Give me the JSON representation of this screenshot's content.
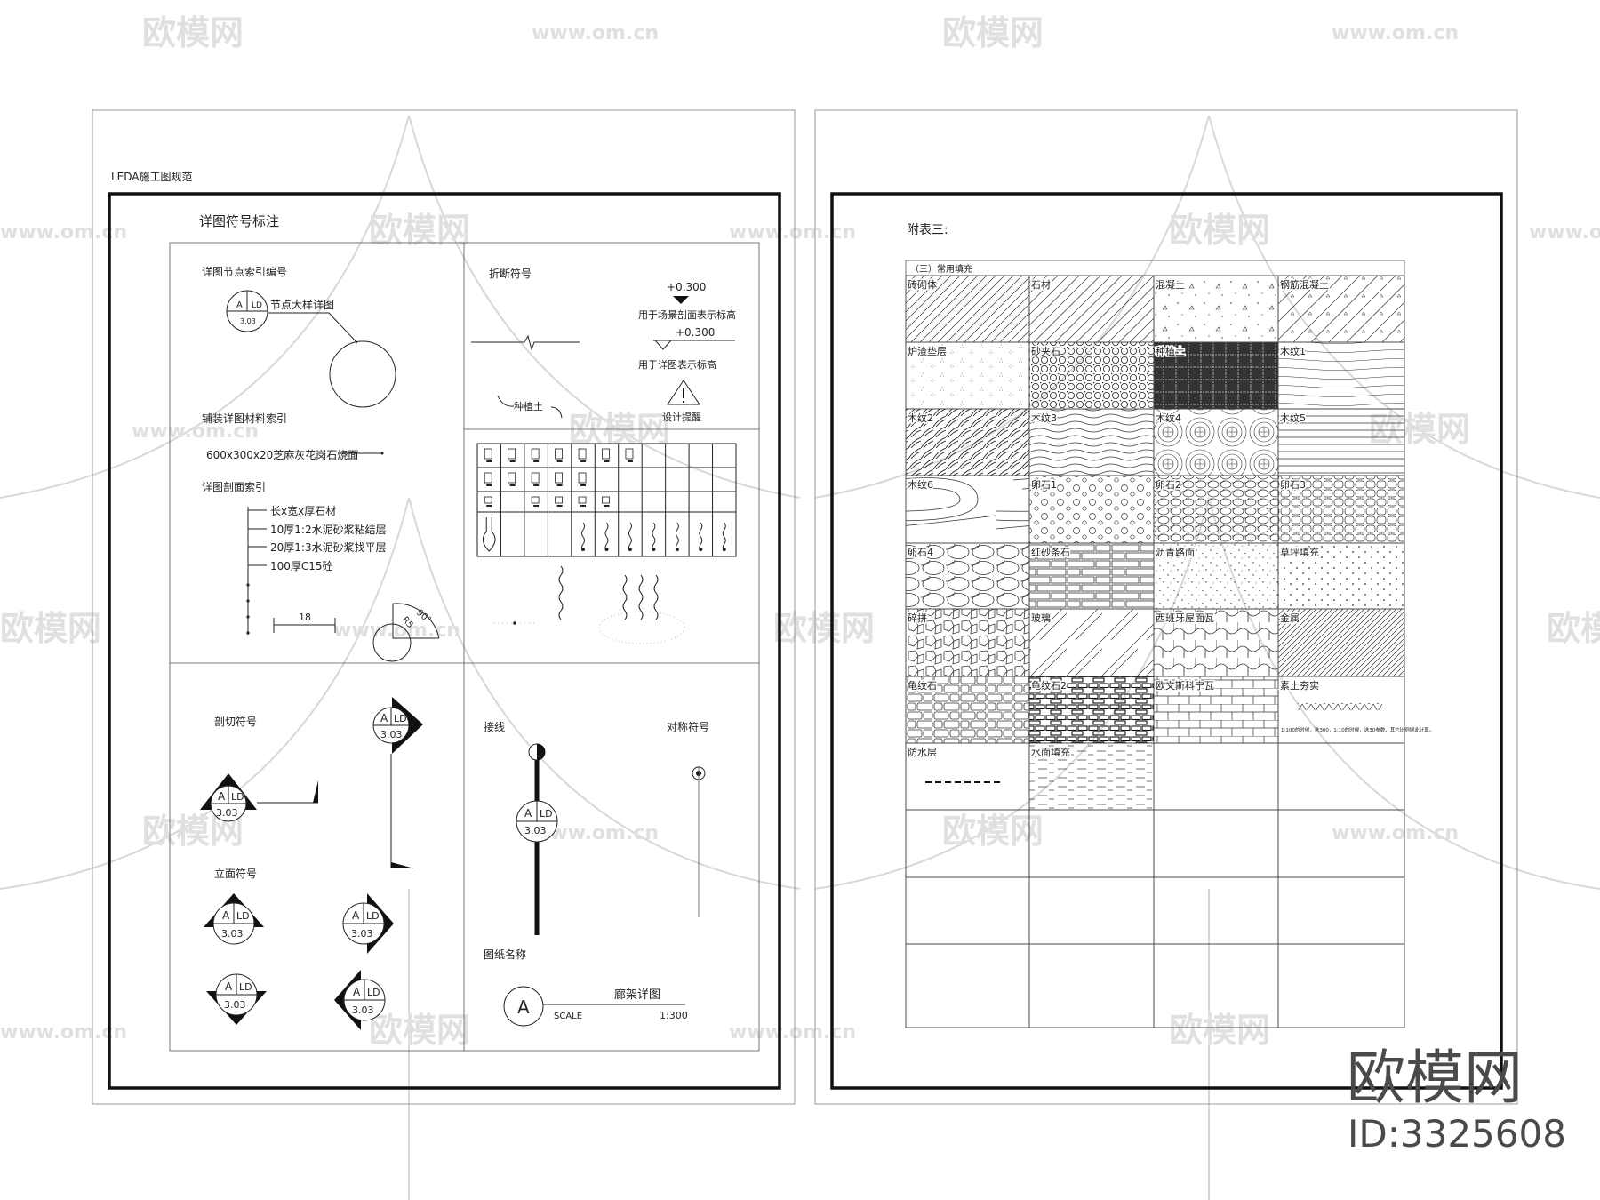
{
  "left_sheet": {
    "header": "LEDA施工图规范",
    "title": "详图符号标注",
    "detail_index": {
      "label": "详图节点索引编号",
      "letter": "A",
      "code": "LD",
      "number": "3.03",
      "callout": "节点大样详图"
    },
    "material_index": {
      "label": "铺装详图材料索引",
      "material": "600x300x20芝麻灰花岗石烧面"
    },
    "section_index": {
      "label": "详图剖面索引",
      "layers": [
        "长x宽x厚石材",
        "10厚1:2水泥砂浆粘结层",
        "20厚1:3水泥砂浆找平层",
        "100厚C15砼"
      ],
      "dimension": "18",
      "angle": "90°",
      "radius": "R5"
    },
    "break_symbol": {
      "label": "折断符号",
      "planting": "种植土"
    },
    "elevation": {
      "value1": "+0.300",
      "desc1": "用于场景剖面表示标高",
      "value2": "+0.300",
      "desc2": "用于详图表示标高",
      "reminder": "设计提醒"
    },
    "section_symbol": {
      "label": "剖切符号",
      "letter": "A",
      "code": "LD",
      "number": "3.03"
    },
    "facade_symbol": {
      "label": "立面符号",
      "letter": "A",
      "code": "LD",
      "number": "3.03"
    },
    "leader_line": {
      "label": "接线",
      "letter": "A",
      "code": "LD",
      "number": "3.03"
    },
    "symmetry": {
      "label": "对称符号"
    },
    "drawing_name": {
      "label": "图纸名称",
      "letter": "A",
      "name": "廊架详图",
      "scale_label": "SCALE",
      "scale": "1:300"
    }
  },
  "right_sheet": {
    "title": "附表三:",
    "table_header": "（三）常用填充",
    "fills": [
      {
        "label": "砖砌体",
        "pattern": "brick-hatch"
      },
      {
        "label": "石材",
        "pattern": "stone-hatch"
      },
      {
        "label": "混凝土",
        "pattern": "concrete"
      },
      {
        "label": "钢筋混凝土",
        "pattern": "reinforced-concrete"
      },
      {
        "label": "炉渣垫层",
        "pattern": "slag"
      },
      {
        "label": "砂夹石",
        "pattern": "gravel"
      },
      {
        "label": "种植土",
        "pattern": "planting-soil"
      },
      {
        "label": "木纹1",
        "pattern": "wood1"
      },
      {
        "label": "木纹2",
        "pattern": "wood2"
      },
      {
        "label": "木纹3",
        "pattern": "wood3"
      },
      {
        "label": "木纹4",
        "pattern": "wood4"
      },
      {
        "label": "木纹5",
        "pattern": "wood5"
      },
      {
        "label": "木纹6",
        "pattern": "wood6"
      },
      {
        "label": "卵石1",
        "pattern": "pebble1"
      },
      {
        "label": "卵石2",
        "pattern": "pebble2"
      },
      {
        "label": "卵石3",
        "pattern": "pebble3"
      },
      {
        "label": "卵石4",
        "pattern": "pebble4"
      },
      {
        "label": "红砂条石",
        "pattern": "sandstone"
      },
      {
        "label": "沥青路面",
        "pattern": "asphalt"
      },
      {
        "label": "草坪填充",
        "pattern": "grass"
      },
      {
        "label": "碎拼",
        "pattern": "crazy-paving"
      },
      {
        "label": "玻璃",
        "pattern": "glass"
      },
      {
        "label": "西班牙屋面瓦",
        "pattern": "spanish-tile"
      },
      {
        "label": "金属",
        "pattern": "metal"
      },
      {
        "label": "龟纹石",
        "pattern": "turtle-stone"
      },
      {
        "label": "龟纹石2",
        "pattern": "turtle-stone2"
      },
      {
        "label": "欧文斯科宁瓦",
        "pattern": "shingle"
      },
      {
        "label": "素土夯实",
        "pattern": "compacted-soil",
        "note": "1:100的时候，选300，1:10的时候，选30参数，其它比例据此计算。"
      },
      {
        "label": "防水层",
        "pattern": "waterproof"
      },
      {
        "label": "水面填充",
        "pattern": "water"
      },
      {
        "label": "",
        "pattern": "none"
      },
      {
        "label": "",
        "pattern": "none"
      }
    ]
  },
  "watermark": {
    "logo_text": "欧模网",
    "url": "www.om.cn",
    "id_text": "ID:3325608"
  },
  "colors": {
    "line": "#222222",
    "watermark": "#e0e0e0",
    "brand": "#4a4a4a"
  }
}
